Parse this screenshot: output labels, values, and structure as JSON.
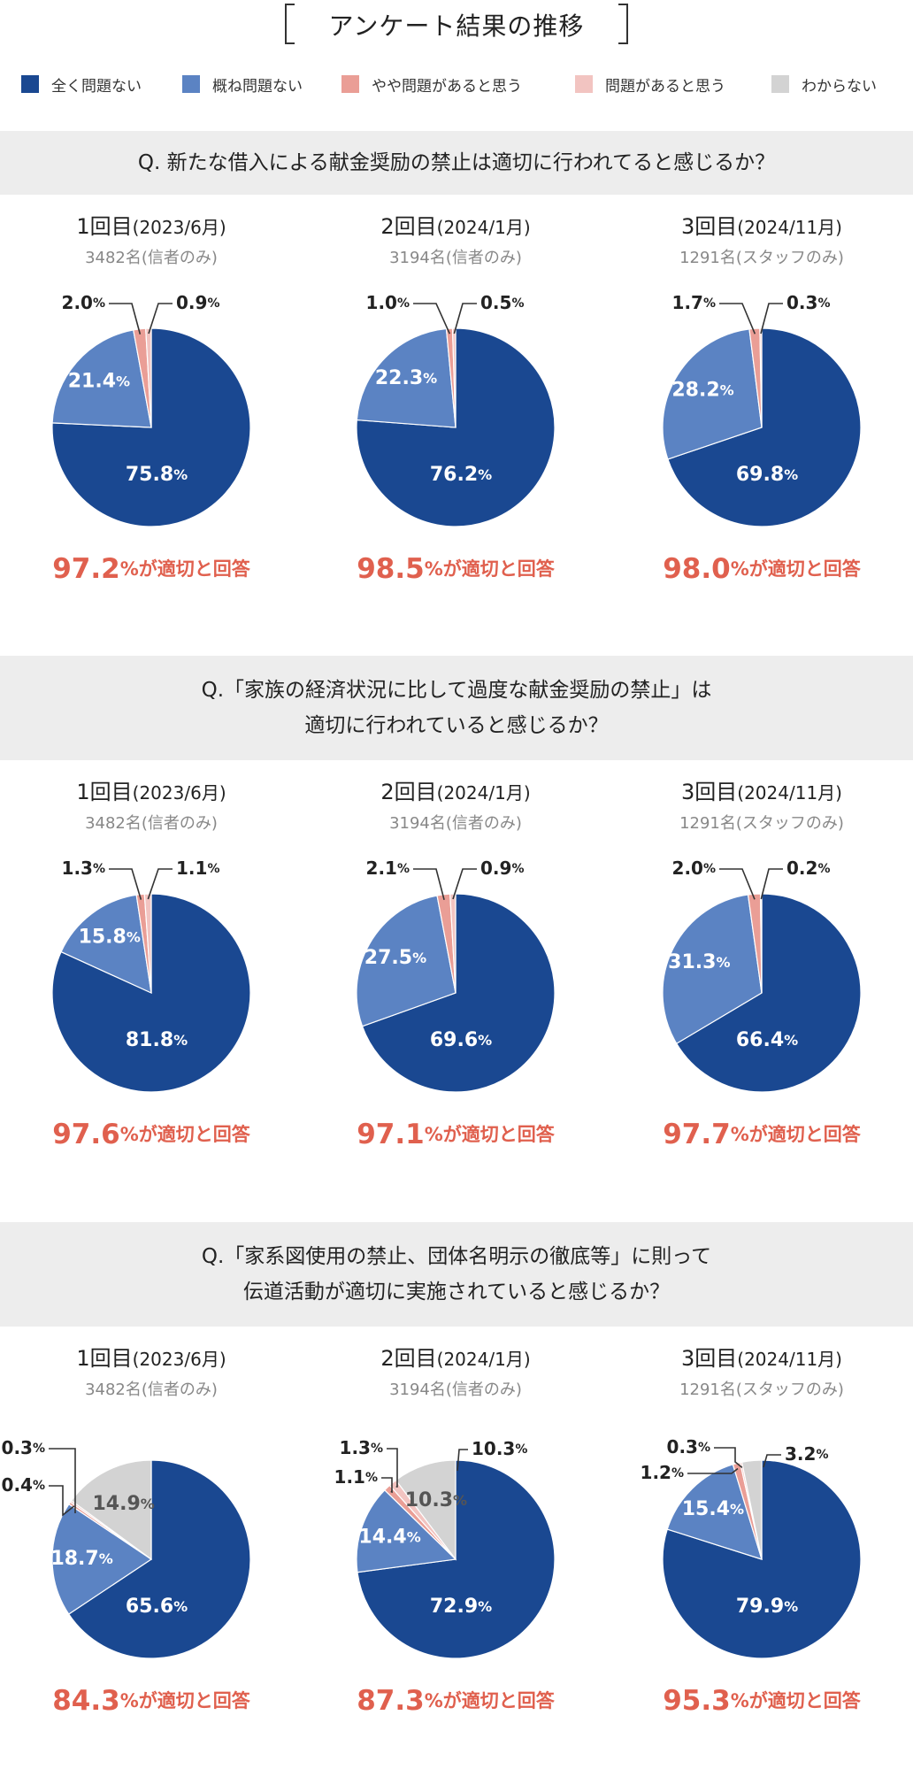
{
  "title": "アンケート結果の推移",
  "legend": [
    {
      "label": "全く問題ない",
      "color": "#1a4891"
    },
    {
      "label": "概ね問題ない",
      "color": "#5b83c3"
    },
    {
      "label": "やや問題があると思う",
      "color": "#ea9e96"
    },
    {
      "label": "問題があると思う",
      "color": "#f2c4c1"
    },
    {
      "label": "わからない",
      "color": "#d3d3d3"
    }
  ],
  "pct_symbol": "%",
  "summary_suffix": "%が適切と回答",
  "rounds": [
    {
      "label": "1回目",
      "date": "(2023/6月)",
      "respondents": "3482名(信者のみ)"
    },
    {
      "label": "2回目",
      "date": "(2024/1月)",
      "respondents": "3194名(信者のみ)"
    },
    {
      "label": "3回目",
      "date": "(2024/11月)",
      "respondents": "1291名(スタッフのみ)"
    }
  ],
  "sections": [
    {
      "question": "Q. 新たな借入による献金奨励の禁止は適切に行われてると感じるか？"
    },
    {
      "question": "Q.「家族の経済状況に比して過度な献金奨励の禁止」は\n適切に行われていると感じるか？"
    },
    {
      "question": "Q.「家系図使用の禁止、団体名明示の徹底等」に則って\n伝道活動が適切に実施されていると感じるか？"
    }
  ],
  "chart_data": [
    {
      "type": "pie",
      "question": "Q. 新たな借入による献金奨励の禁止は適切に行われてると感じるか？",
      "round": "1回目(2023/6月)",
      "categories": [
        "全く問題ない",
        "概ね問題ない",
        "やや問題があると思う",
        "問題があると思う",
        "わからない"
      ],
      "values": [
        75.8,
        21.4,
        2.0,
        0.9,
        null
      ],
      "summary": "97.2"
    },
    {
      "type": "pie",
      "question": "Q. 新たな借入による献金奨励の禁止は適切に行われてると感じるか？",
      "round": "2回目(2024/1月)",
      "categories": [
        "全く問題ない",
        "概ね問題ない",
        "やや問題があると思う",
        "問題があると思う",
        "わからない"
      ],
      "values": [
        76.2,
        22.3,
        1.0,
        0.5,
        null
      ],
      "summary": "98.5"
    },
    {
      "type": "pie",
      "question": "Q. 新たな借入による献金奨励の禁止は適切に行われてると感じるか？",
      "round": "3回目(2024/11月)",
      "categories": [
        "全く問題ない",
        "概ね問題ない",
        "やや問題があると思う",
        "問題があると思う",
        "わからない"
      ],
      "values": [
        69.8,
        28.2,
        1.7,
        0.3,
        null
      ],
      "summary": "98.0"
    },
    {
      "type": "pie",
      "question": "Q.「家族の経済状況に比して過度な献金奨励の禁止」は適切に行われていると感じるか？",
      "round": "1回目(2023/6月)",
      "categories": [
        "全く問題ない",
        "概ね問題ない",
        "やや問題があると思う",
        "問題があると思う",
        "わからない"
      ],
      "values": [
        81.8,
        15.8,
        1.3,
        1.1,
        null
      ],
      "summary": "97.6"
    },
    {
      "type": "pie",
      "question": "Q.「家族の経済状況に比して過度な献金奨励の禁止」は適切に行われていると感じるか？",
      "round": "2回目(2024/1月)",
      "categories": [
        "全く問題ない",
        "概ね問題ない",
        "やや問題があると思う",
        "問題があると思う",
        "わからない"
      ],
      "values": [
        69.6,
        27.5,
        2.1,
        0.9,
        null
      ],
      "summary": "97.1"
    },
    {
      "type": "pie",
      "question": "Q.「家族の経済状況に比して過度な献金奨励の禁止」は適切に行われていると感じるか？",
      "round": "3回目(2024/11月)",
      "categories": [
        "全く問題ない",
        "概ね問題ない",
        "やや問題があると思う",
        "問題があると思う",
        "わからない"
      ],
      "values": [
        66.4,
        31.3,
        2.0,
        0.2,
        null
      ],
      "summary": "97.7"
    },
    {
      "type": "pie",
      "question": "Q.「家系図使用の禁止、団体名明示の徹底等」に則って伝道活動が適切に実施されていると感じるか？",
      "round": "1回目(2023/6月)",
      "categories": [
        "全く問題ない",
        "概ね問題ない",
        "やや問題があると思う",
        "問題があると思う",
        "わからない"
      ],
      "values": [
        65.6,
        18.7,
        0.4,
        0.3,
        14.9
      ],
      "summary": "84.3"
    },
    {
      "type": "pie",
      "question": "Q.「家系図使用の禁止、団体名明示の徹底等」に則って伝道活動が適切に実施されていると感じるか？",
      "round": "2回目(2024/1月)",
      "categories": [
        "全く問題ない",
        "概ね問題ない",
        "やや問題があると思う",
        "問題があると思う",
        "わからない"
      ],
      "values": [
        72.9,
        14.4,
        1.1,
        1.3,
        10.3
      ],
      "summary": "87.3"
    },
    {
      "type": "pie",
      "question": "Q.「家系図使用の禁止、団体名明示の徹底等」に則って伝道活動が適切に実施されていると感じるか？",
      "round": "3回目(2024/11月)",
      "categories": [
        "全く問題ない",
        "概ね問題ない",
        "やや問題があると思う",
        "問題があると思う",
        "わからない"
      ],
      "values": [
        79.9,
        15.4,
        1.2,
        0.3,
        3.2
      ],
      "summary": "95.3"
    }
  ]
}
